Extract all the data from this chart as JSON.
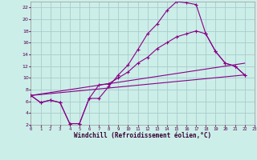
{
  "xlabel": "Windchill (Refroidissement éolien,°C)",
  "bg_color": "#cceee8",
  "grid_color": "#aacccc",
  "line_color": "#880088",
  "xlim": [
    0,
    23
  ],
  "ylim": [
    2,
    23
  ],
  "xticks": [
    0,
    1,
    2,
    3,
    4,
    5,
    6,
    7,
    8,
    9,
    10,
    11,
    12,
    13,
    14,
    15,
    16,
    17,
    18,
    19,
    20,
    21,
    22,
    23
  ],
  "yticks": [
    2,
    4,
    6,
    8,
    10,
    12,
    14,
    16,
    18,
    20,
    22
  ],
  "series_high": {
    "x": [
      0,
      1,
      2,
      3,
      4,
      5,
      6,
      7,
      8,
      9,
      10,
      11,
      12,
      13,
      14,
      15,
      16,
      17,
      18,
      19,
      20,
      21,
      22
    ],
    "y": [
      7.0,
      5.8,
      6.2,
      5.8,
      2.2,
      2.2,
      6.5,
      6.5,
      8.5,
      10.5,
      12.2,
      14.8,
      17.5,
      19.2,
      21.5,
      23.0,
      22.8,
      22.5,
      17.5,
      14.5,
      12.5,
      12.0,
      10.5
    ]
  },
  "series_mid": {
    "x": [
      0,
      1,
      2,
      3,
      4,
      5,
      6,
      7,
      8,
      9,
      10,
      11,
      12,
      13,
      14,
      15,
      16,
      17,
      18,
      19,
      20,
      21,
      22
    ],
    "y": [
      7.0,
      5.8,
      6.2,
      5.8,
      2.2,
      2.2,
      6.5,
      8.8,
      9.0,
      10.0,
      11.0,
      12.5,
      13.5,
      15.0,
      16.0,
      17.0,
      17.5,
      18.0,
      17.5,
      14.5,
      12.5,
      12.0,
      10.5
    ]
  },
  "line1": {
    "x": [
      0,
      22
    ],
    "y": [
      7.0,
      12.5
    ]
  },
  "line2": {
    "x": [
      0,
      22
    ],
    "y": [
      7.0,
      10.5
    ]
  }
}
